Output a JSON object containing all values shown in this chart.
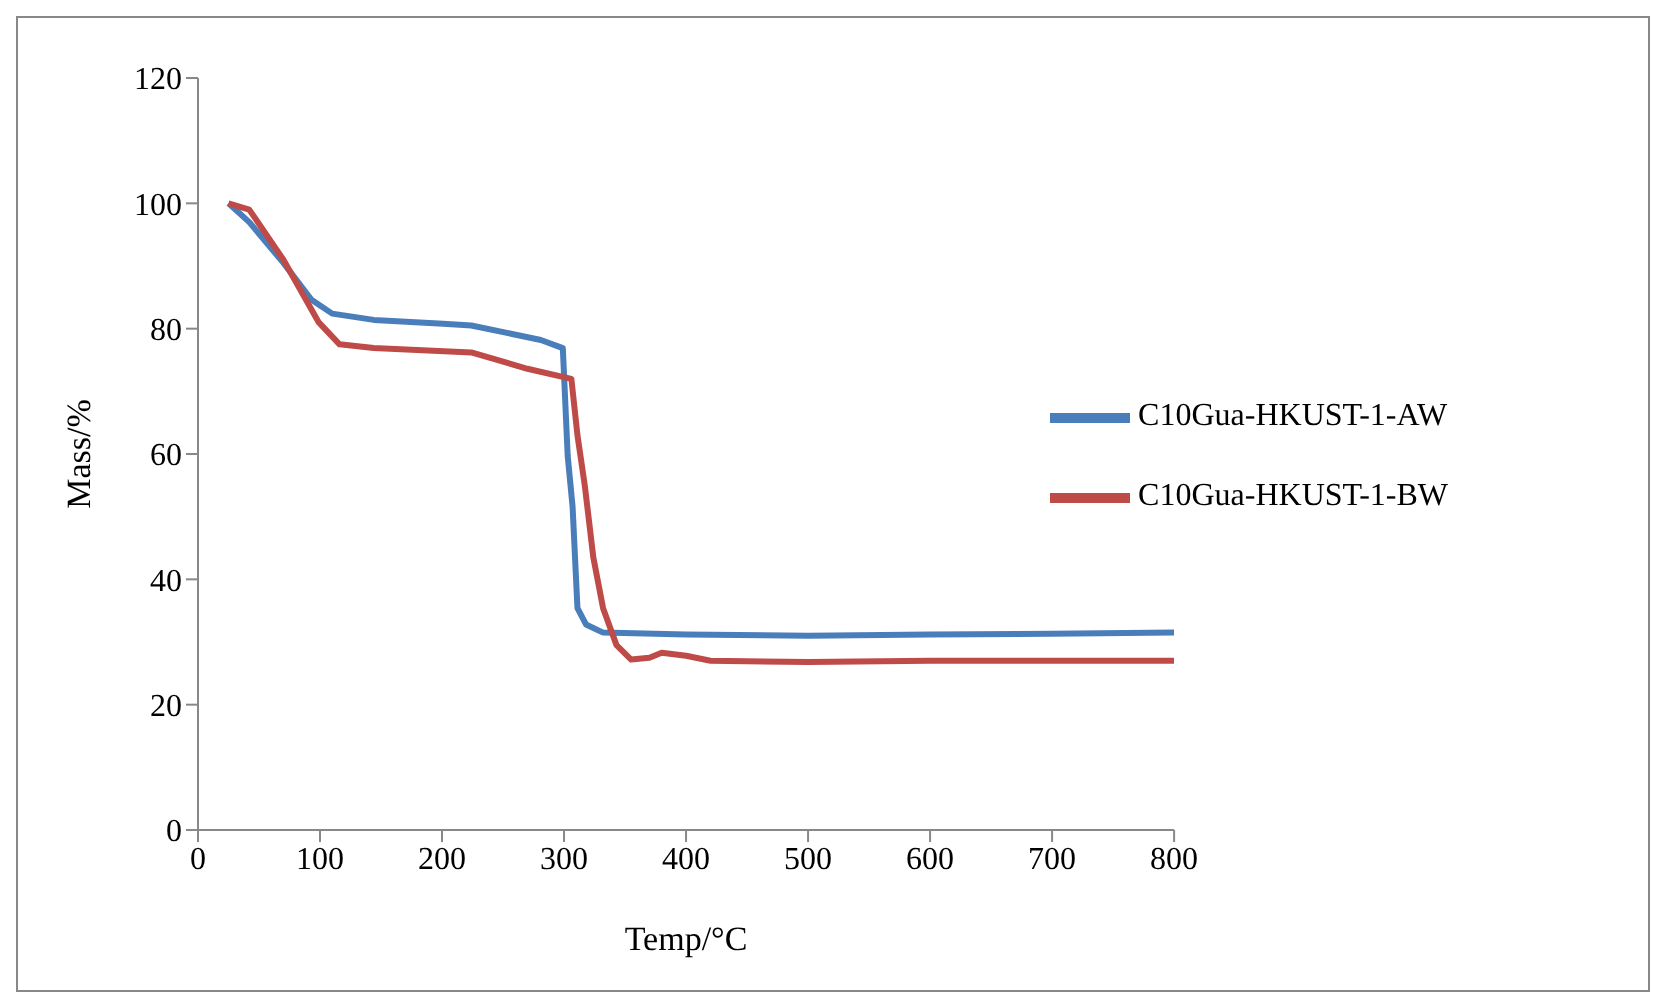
{
  "chart_data": {
    "type": "line",
    "xlabel": "Temp/°C",
    "ylabel": "Mass/%",
    "xlim": [
      0,
      800
    ],
    "xticks": [
      0,
      100,
      200,
      300,
      400,
      500,
      600,
      700,
      800
    ],
    "ylim": [
      0,
      120
    ],
    "yticks": [
      0,
      20,
      40,
      60,
      80,
      100,
      120
    ],
    "grid": false,
    "legend": "right",
    "marker": "none",
    "line_style": "solid",
    "series": [
      {
        "name": "C10Gua-HKUST-1-AW",
        "color": "#4a7ebb",
        "x": [
          25,
          42,
          70,
          93,
          110,
          144,
          201,
          224,
          281,
          299,
          303,
          307,
          311,
          318,
          332,
          400,
          500,
          600,
          700,
          800
        ],
        "values": [
          100,
          97,
          90.5,
          84.6,
          82.4,
          81.4,
          80.8,
          80.5,
          78.2,
          76.9,
          59.7,
          51.6,
          35.4,
          32.8,
          31.5,
          31.2,
          31,
          31.2,
          31.3,
          31.5
        ]
      },
      {
        "name": "C10Gua-HKUST-1-BW",
        "color": "#be4b48",
        "x": [
          25,
          42,
          70,
          99,
          116,
          144,
          224,
          270,
          306,
          311,
          317,
          324,
          332,
          343,
          355,
          370,
          380,
          400,
          420,
          500,
          600,
          700,
          800
        ],
        "values": [
          100,
          99,
          91,
          81,
          77.5,
          76.9,
          76.2,
          73.6,
          72,
          63,
          55,
          43.5,
          35.4,
          29.5,
          27.2,
          27.5,
          28.3,
          27.8,
          27,
          26.8,
          27,
          27,
          27
        ]
      }
    ]
  }
}
